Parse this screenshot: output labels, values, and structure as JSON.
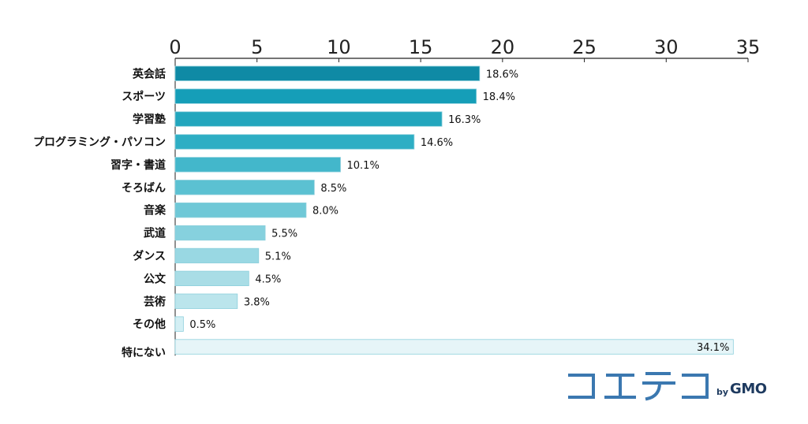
{
  "chart_data": {
    "type": "bar",
    "orientation": "horizontal",
    "xlim": [
      0,
      35
    ],
    "ticks": [
      0,
      5,
      10,
      15,
      20,
      25,
      30,
      35
    ],
    "categories": [
      "英会話",
      "スポーツ",
      "学習塾",
      "プログラミング・パソコン",
      "習字・書道",
      "そろばん",
      "音楽",
      "武道",
      "ダンス",
      "公文",
      "芸術",
      "その他",
      "特にない"
    ],
    "values": [
      18.6,
      18.4,
      16.3,
      14.6,
      10.1,
      8.5,
      8.0,
      5.5,
      5.1,
      4.5,
      3.8,
      0.5,
      34.1
    ],
    "value_labels": [
      "18.6%",
      "18.4%",
      "16.3%",
      "14.6%",
      "10.1%",
      "8.5%",
      "8.0%",
      "5.5%",
      "5.1%",
      "4.5%",
      "3.8%",
      "0.5%",
      "34.1%"
    ],
    "colors": [
      "#0f8aa5",
      "#159eb8",
      "#22a6bd",
      "#2eaec4",
      "#43b7cb",
      "#5bc1d2",
      "#6fc8d7",
      "#86d1de",
      "#99d8e3",
      "#a9dde6",
      "#bbe5ec",
      "#d3eff4",
      "#e6f5f8"
    ],
    "edge_color": "#8ccfdc",
    "title": "",
    "xlabel": "",
    "ylabel": ""
  },
  "brand": {
    "by_label": "by",
    "company_label": "GMO",
    "logo_color": "#3b78b0"
  }
}
